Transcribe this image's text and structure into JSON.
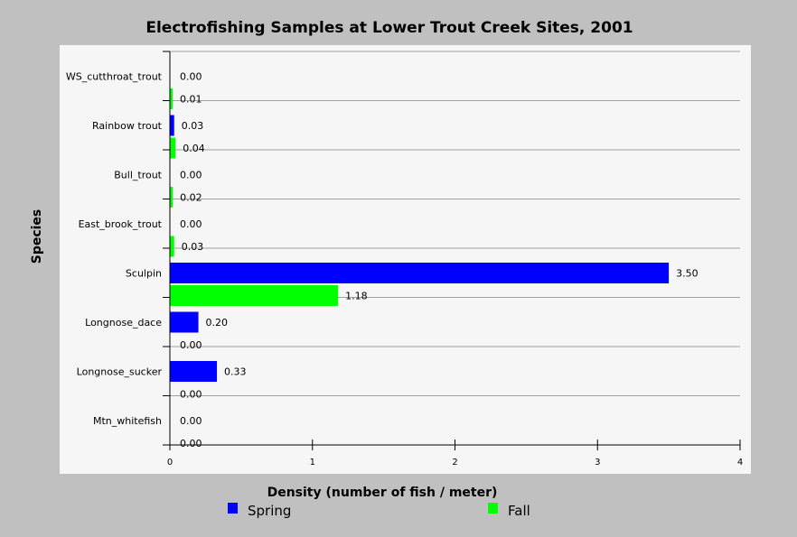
{
  "chart_data": {
    "type": "bar",
    "orientation": "horizontal",
    "title": "Electrofishing Samples at Lower Trout Creek Sites, 2001",
    "xlabel": "Density (number of fish / meter)",
    "ylabel": "Species",
    "xlim": [
      0,
      4
    ],
    "xticks": [
      "0",
      "1",
      "2",
      "3",
      "4"
    ],
    "categories": [
      "WS_cutthroat_trout",
      "Rainbow trout",
      "Bull_trout",
      "East_brook_trout",
      "Sculpin",
      "Longnose_dace",
      "Longnose_sucker",
      "Mtn_whitefish"
    ],
    "series": [
      {
        "name": "Spring",
        "color": "#0000ff",
        "values": [
          0.0,
          0.03,
          0.0,
          0.0,
          3.5,
          0.2,
          0.33,
          0.0
        ],
        "labels": [
          "0.00",
          "0.03",
          "0.00",
          "0.00",
          "3.50",
          "0.20",
          "0.33",
          "0.00"
        ]
      },
      {
        "name": "Fall",
        "color": "#00ff00",
        "values": [
          0.01,
          0.04,
          0.02,
          0.03,
          1.18,
          0.0,
          0.0,
          0.0
        ],
        "labels": [
          "0.01",
          "0.04",
          "0.02",
          "0.03",
          "1.18",
          "0.00",
          "0.00",
          "0.00"
        ]
      }
    ],
    "grid": "horizontal-category-separators",
    "legend": "bottom"
  }
}
